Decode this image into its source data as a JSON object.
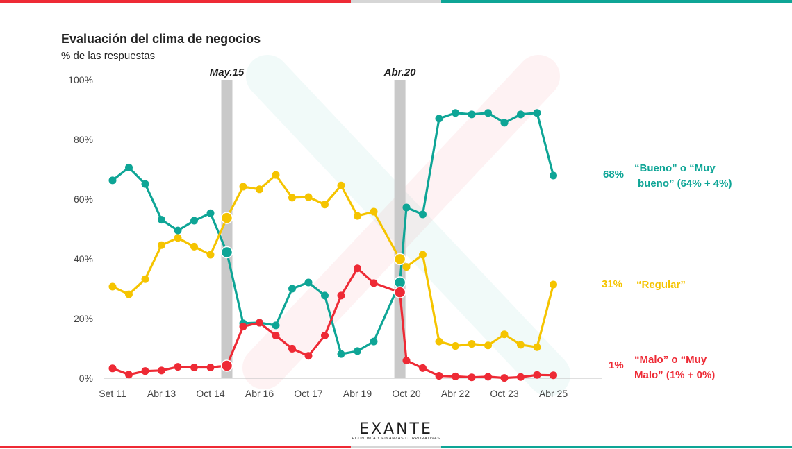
{
  "colors": {
    "bueno": "#0ea596",
    "regular": "#f5c400",
    "malo": "#ee2a35",
    "event_band": "#c9c9c9",
    "bar_red": "#ee2a35",
    "bar_grey": "#d6d6d6",
    "bar_teal": "#0ea596"
  },
  "logo": {
    "name": "EXANTE",
    "tagline": "ECONOMÍA Y FINANZAS CORPORATIVAS"
  },
  "annotations": {
    "bueno": {
      "value": "68%",
      "label_line1": "“Bueno” o “Muy",
      "label_line2": "bueno” (64% + 4%)"
    },
    "regular": {
      "value": "31%",
      "label_line1": "“Regular”"
    },
    "malo": {
      "value": "1%",
      "label_line1": "“Malo” o “Muy",
      "label_line2": "Malo” (1% + 0%)"
    }
  },
  "chart_data": {
    "type": "line",
    "title": "Evaluación del clima de negocios",
    "subtitle": "% de las respuestas",
    "ylim": [
      0,
      100
    ],
    "yticks": [
      0,
      20,
      40,
      60,
      80,
      100
    ],
    "ytick_labels": [
      "0%",
      "20%",
      "40%",
      "60%",
      "80%",
      "100%"
    ],
    "xtick_labels": [
      {
        "index": 0,
        "label": "Set 11"
      },
      {
        "index": 3,
        "label": "Abr 13"
      },
      {
        "index": 6,
        "label": "Oct 14"
      },
      {
        "index": 9,
        "label": "Abr 16"
      },
      {
        "index": 12,
        "label": "Oct 17"
      },
      {
        "index": 15,
        "label": "Abr 19"
      },
      {
        "index": 18,
        "label": "Oct 20"
      },
      {
        "index": 21,
        "label": "Abr 22"
      },
      {
        "index": 24,
        "label": "Oct 23"
      },
      {
        "index": 27,
        "label": "Abr 25"
      }
    ],
    "events": [
      {
        "label": "May.15",
        "x": 7.0
      },
      {
        "label": "Abr.20",
        "x": 17.6
      }
    ],
    "series": [
      {
        "name": "“Bueno” o “Muy bueno” (64% + 4%)",
        "key": "bueno",
        "points": [
          [
            0,
            66.3
          ],
          [
            1,
            70.6
          ],
          [
            2,
            65.1
          ],
          [
            3,
            53.1
          ],
          [
            4,
            49.5
          ],
          [
            5,
            52.8
          ],
          [
            6,
            55.3
          ],
          [
            7,
            42.2
          ],
          [
            8,
            18.4
          ],
          [
            9,
            18.6
          ],
          [
            10,
            17.7
          ],
          [
            11,
            30.0
          ],
          [
            12,
            32.1
          ],
          [
            13,
            27.7
          ],
          [
            14,
            8.1
          ],
          [
            15,
            9.1
          ],
          [
            16,
            12.3
          ],
          [
            17.6,
            32.1
          ],
          [
            18,
            57.2
          ],
          [
            19,
            54.9
          ],
          [
            20,
            87.0
          ],
          [
            21,
            88.9
          ],
          [
            22,
            88.4
          ],
          [
            23,
            88.9
          ],
          [
            24,
            85.6
          ],
          [
            25,
            88.4
          ],
          [
            26,
            88.9
          ],
          [
            27,
            67.9
          ]
        ],
        "highlight_x": [
          7,
          17.6
        ]
      },
      {
        "name": "“Regular”",
        "key": "regular",
        "points": [
          [
            0,
            30.7
          ],
          [
            1,
            28.1
          ],
          [
            2,
            33.2
          ],
          [
            3,
            44.6
          ],
          [
            4,
            47.0
          ],
          [
            5,
            44.1
          ],
          [
            6,
            41.4
          ],
          [
            7,
            53.7
          ],
          [
            8,
            64.2
          ],
          [
            9,
            63.3
          ],
          [
            10,
            68.1
          ],
          [
            11,
            60.5
          ],
          [
            12,
            60.7
          ],
          [
            13,
            58.2
          ],
          [
            14,
            64.6
          ],
          [
            15,
            54.4
          ],
          [
            16,
            55.8
          ],
          [
            17.6,
            39.9
          ],
          [
            18,
            37.3
          ],
          [
            19,
            41.4
          ],
          [
            20,
            12.3
          ],
          [
            21,
            10.8
          ],
          [
            22,
            11.5
          ],
          [
            23,
            11.0
          ],
          [
            24,
            14.7
          ],
          [
            25,
            11.2
          ],
          [
            26,
            10.4
          ],
          [
            27,
            31.4
          ]
        ],
        "highlight_x": [
          7,
          17.6
        ]
      },
      {
        "name": "“Malo” o “Muy Malo” (1% + 0%)",
        "key": "malo",
        "points": [
          [
            0,
            3.3
          ],
          [
            1,
            1.2
          ],
          [
            2,
            2.4
          ],
          [
            3,
            2.6
          ],
          [
            4,
            3.8
          ],
          [
            5,
            3.6
          ],
          [
            6,
            3.6
          ],
          [
            7,
            4.2
          ],
          [
            8,
            17.3
          ],
          [
            9,
            18.6
          ],
          [
            10,
            14.3
          ],
          [
            11,
            9.9
          ],
          [
            12,
            7.5
          ],
          [
            13,
            14.3
          ],
          [
            14,
            27.7
          ],
          [
            15,
            36.8
          ],
          [
            16,
            31.9
          ],
          [
            17.6,
            28.8
          ],
          [
            18,
            5.9
          ],
          [
            19,
            3.4
          ],
          [
            20,
            0.8
          ],
          [
            21,
            0.6
          ],
          [
            22,
            0.3
          ],
          [
            23,
            0.5
          ],
          [
            24,
            0.1
          ],
          [
            25,
            0.4
          ],
          [
            26,
            1.1
          ],
          [
            27,
            1.0
          ]
        ],
        "highlight_x": [
          7,
          17.6
        ]
      }
    ]
  }
}
